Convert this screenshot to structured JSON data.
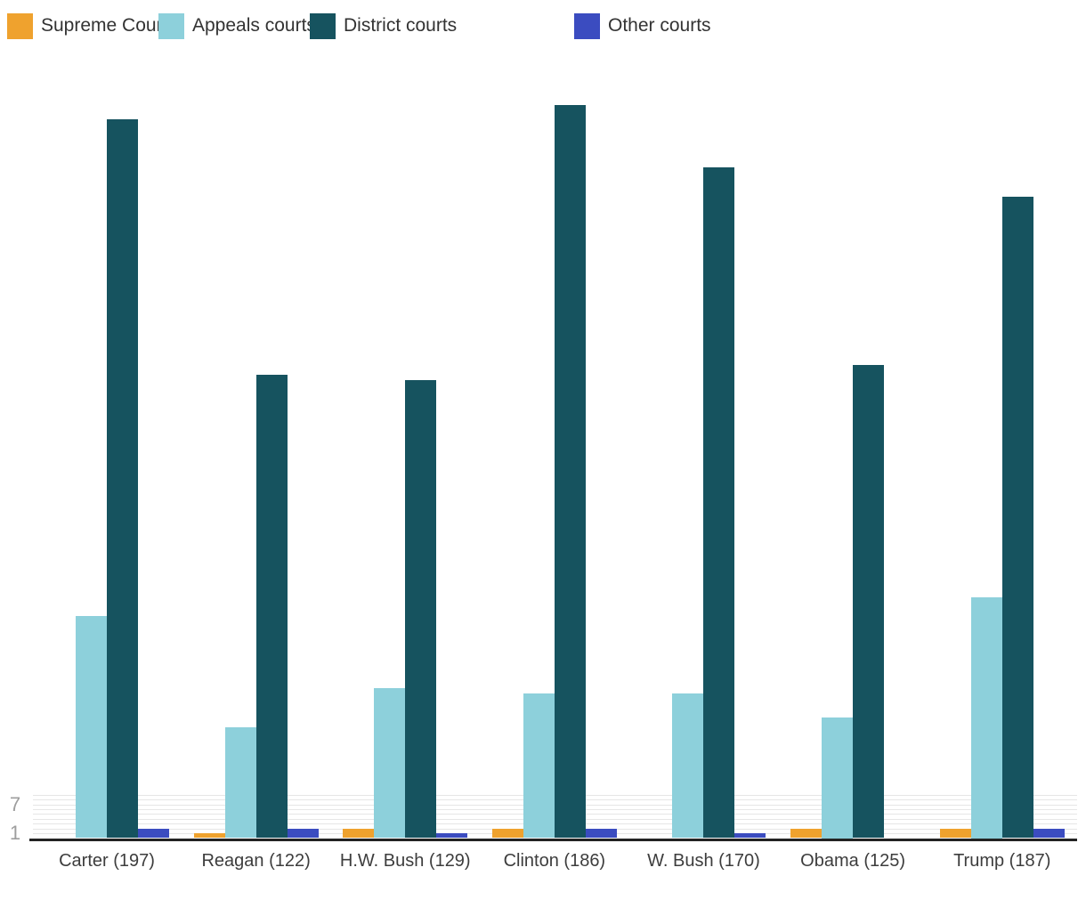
{
  "chart_data": {
    "type": "bar",
    "categories": [
      "Carter (197)",
      "Reagan (122)",
      "H.W. Bush (129)",
      "Clinton (186)",
      "W. Bush (170)",
      "Obama (125)",
      "Trump (187)"
    ],
    "category_totals": [
      197,
      122,
      129,
      186,
      170,
      125,
      187
    ],
    "series": [
      {
        "name": "Supreme Court",
        "color": "#EFA22E",
        "values": [
          0,
          1,
          2,
          2,
          0,
          2,
          2
        ]
      },
      {
        "name": "Appeals courts",
        "color": "#8DD0DB",
        "values": [
          46,
          23,
          31,
          30,
          30,
          25,
          50
        ]
      },
      {
        "name": "District courts",
        "color": "#16535F",
        "values": [
          149,
          96,
          95,
          152,
          139,
          98,
          133
        ]
      },
      {
        "name": "Other courts",
        "color": "#3B4CC0",
        "values": [
          2,
          2,
          1,
          2,
          1,
          0,
          2
        ]
      }
    ],
    "legend_position": "top-left",
    "grid": "minor-lines-near-zero",
    "gridline_values": [
      1,
      2,
      3,
      4,
      5,
      6,
      7,
      8,
      9
    ],
    "y_axis_ticks": [
      {
        "value": 7,
        "label": "7"
      },
      {
        "value": 1,
        "label": "1"
      }
    ],
    "xlabel": "",
    "ylabel": "",
    "colors": {
      "gridline": "#e6e6e6",
      "axis_line": "#232323",
      "tick_text": "#9e9e9e",
      "category_text": "#3d3d3d",
      "legend_text": "#333333"
    }
  }
}
